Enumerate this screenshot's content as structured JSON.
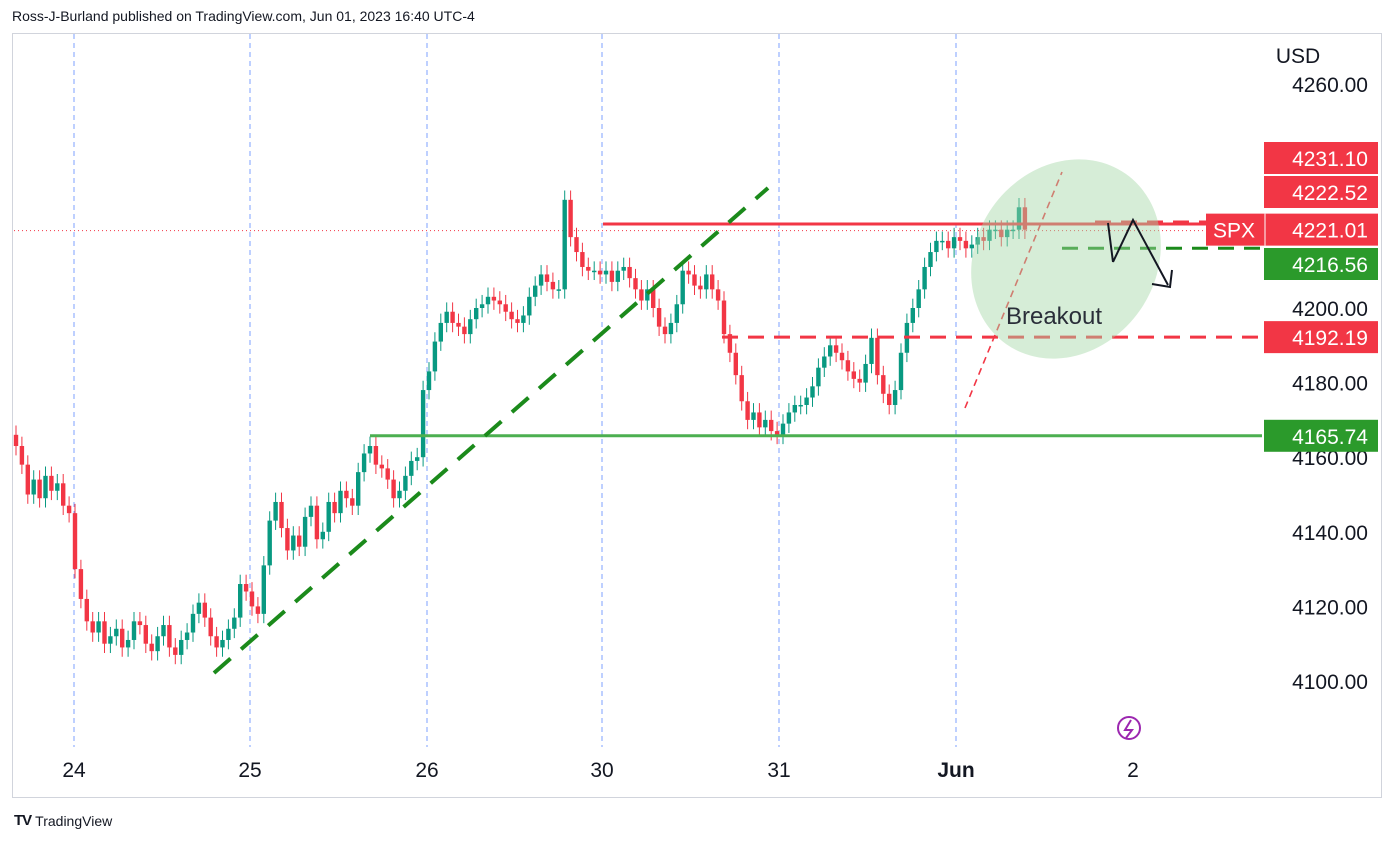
{
  "header": {
    "attribution": "Ross-J-Burland published on TradingView.com, Jun 01, 2023 16:40 UTC-4"
  },
  "footer": {
    "logo_mark": "TV",
    "brand": "TradingView"
  },
  "colors": {
    "up": "#089981",
    "down": "#f23645",
    "resistance": "#f23645",
    "support": "#4caf50",
    "trendline": "#1b8a1b",
    "grid": "#2962ff",
    "label_red": "#f23645",
    "label_green": "#2b9a2b",
    "breakout_fill": "#a5d6a7",
    "bolt": "#9c27b0"
  },
  "chart_data": {
    "type": "candlestick",
    "symbol": "SPX",
    "currency": "USD",
    "y_ticks": [
      "4260.00",
      "4200.00",
      "4180.00",
      "4160.00",
      "4140.00",
      "4120.00",
      "4100.00"
    ],
    "ylim": [
      4085,
      4268
    ],
    "x_labels": [
      "24",
      "25",
      "26",
      "30",
      "31",
      "Jun",
      "2"
    ],
    "price_labels": [
      {
        "text": "4231.10",
        "value": 4231.1,
        "color": "red"
      },
      {
        "text": "4222.52",
        "value": 4222.52,
        "color": "red"
      },
      {
        "text": "4221.01",
        "value": 4221.01,
        "color": "red",
        "prefix": "SPX"
      },
      {
        "text": "4216.56",
        "value": 4216.56,
        "color": "green"
      },
      {
        "text": "4192.19",
        "value": 4192.19,
        "color": "red"
      },
      {
        "text": "4165.74",
        "value": 4165.74,
        "color": "green"
      }
    ],
    "levels": {
      "resistance": 4222.52,
      "support": 4165.74,
      "dashed_resistance": 4192.19,
      "dashed_red_upper": 4218.5,
      "dashed_green": 4216.56,
      "last_price": 4221.01
    },
    "annotation": "Breakout",
    "closes": [
      4163,
      4158,
      4150,
      4154,
      4149,
      4155,
      4151,
      4153,
      4147,
      4145,
      4130,
      4122,
      4116,
      4113,
      4116,
      4110,
      4112,
      4114,
      4109,
      4111,
      4116,
      4115,
      4110,
      4108,
      4112,
      4115,
      4109,
      4107,
      4111,
      4113,
      4118,
      4121,
      4117,
      4112,
      4109,
      4111,
      4114,
      4117,
      4126,
      4124,
      4120,
      4118,
      4131,
      4143,
      4148,
      4141,
      4135,
      4139,
      4136,
      4144,
      4147,
      4138,
      4140,
      4148,
      4145,
      4151,
      4149,
      4147,
      4156,
      4161,
      4163,
      4158,
      4157,
      4154,
      4149,
      4151,
      4155,
      4159,
      4160,
      4178,
      4183,
      4191,
      4196,
      4199,
      4196,
      4195,
      4193,
      4197,
      4200,
      4201,
      4203,
      4202,
      4201,
      4199,
      4197,
      4196,
      4198,
      4203,
      4206,
      4209,
      4207,
      4205,
      4205,
      4229,
      4219,
      4215,
      4211,
      4210,
      4210,
      4209,
      4210,
      4207,
      4210,
      4211,
      4208,
      4205,
      4202,
      4205,
      4200,
      4195,
      4193,
      4196,
      4201,
      4210,
      4209,
      4206,
      4205,
      4209,
      4205,
      4202,
      4193,
      4188,
      4182,
      4175,
      4170,
      4172,
      4168,
      4170,
      4167,
      4166,
      4169,
      4172,
      4174,
      4174,
      4176,
      4179,
      4184,
      4187,
      4190,
      4188,
      4186,
      4183,
      4181,
      4180,
      4185,
      4192,
      4182,
      4177,
      4174,
      4178,
      4188,
      4196,
      4200,
      4205,
      4211,
      4215,
      4218,
      4218,
      4216,
      4219,
      4218,
      4216,
      4217,
      4219,
      4218,
      4221,
      4221,
      4219,
      4221,
      4221,
      4227,
      4221
    ]
  }
}
